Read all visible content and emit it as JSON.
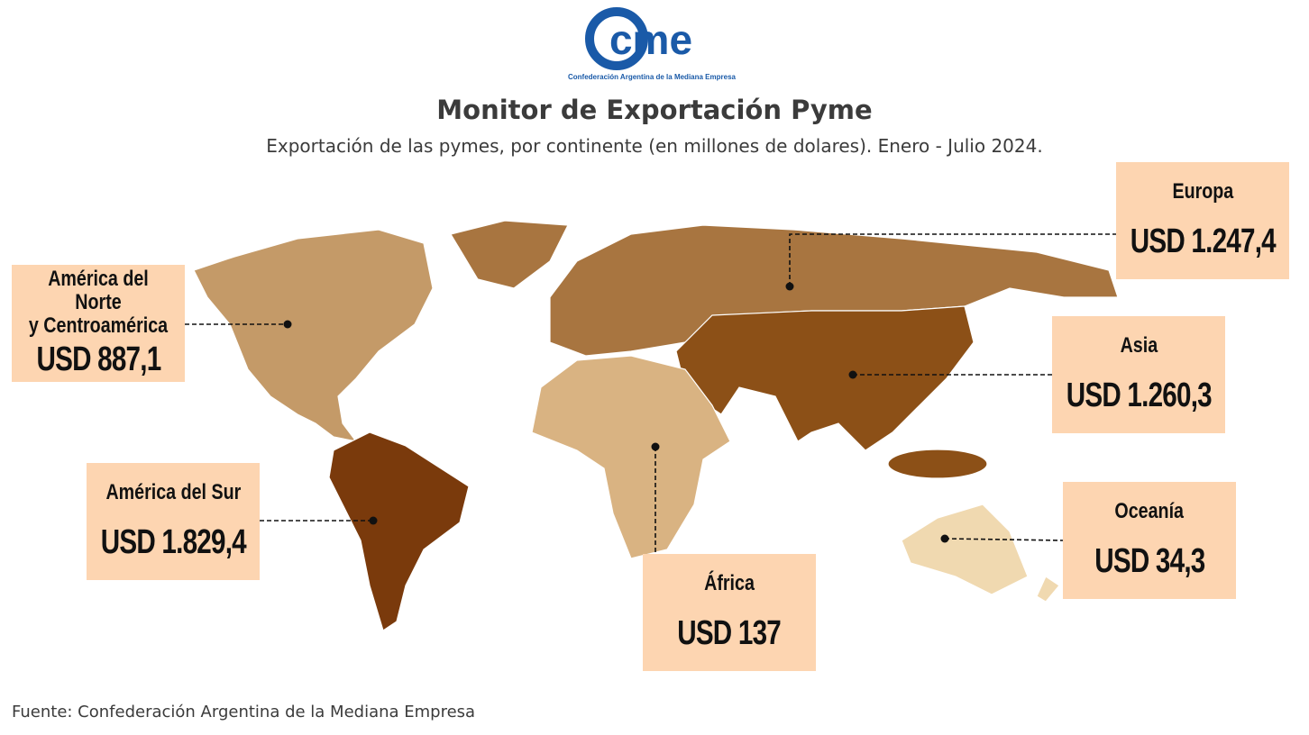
{
  "logo": {
    "mark": "cme",
    "caption": "Confederación Argentina de la Mediana Empresa"
  },
  "header": {
    "title": "Monitor de Exportación Pyme",
    "subtitle": "Exportación de las pymes, por continente (en millones de dolares). Enero - Julio 2024."
  },
  "regions": [
    {
      "name": [
        "América del Norte",
        "y Centroamérica"
      ],
      "value": "USD 887,1"
    },
    {
      "name": [
        "Europa"
      ],
      "value": "USD 1.247,4"
    },
    {
      "name": [
        "Asia"
      ],
      "value": "USD 1.260,3"
    },
    {
      "name": [
        "América del Sur"
      ],
      "value": "USD 1.829,4"
    },
    {
      "name": [
        "África"
      ],
      "value": "USD 137"
    },
    {
      "name": [
        "Oceanía"
      ],
      "value": "USD 34,3"
    }
  ],
  "footer": {
    "source": "Fuente: Confederación Argentina de la Mediana Empresa"
  }
}
